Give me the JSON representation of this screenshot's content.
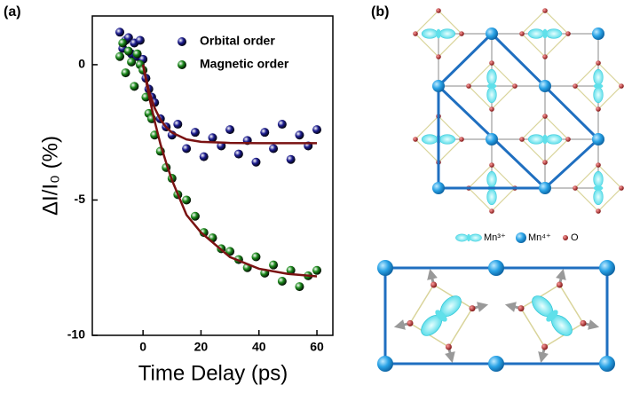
{
  "chart_data": {
    "type": "scatter",
    "panel_label": "(a)",
    "x_label": "Time Delay (ps)",
    "y_label": "ΔI/I₀ (%)",
    "xlim": [
      -17.5,
      65.5
    ],
    "ylim": [
      -10,
      1.8
    ],
    "xticks": [
      0,
      20,
      40,
      60
    ],
    "yticks": [
      0,
      -5,
      -10
    ],
    "legend": "upper right",
    "series": [
      {
        "name": "Orbital order",
        "type": "scatter",
        "color": "#1c1c8f",
        "x": [
          -8,
          -7,
          -6,
          -5,
          -4,
          -3,
          -2,
          -1,
          0,
          1,
          2,
          3,
          4,
          6,
          8,
          10,
          12,
          15,
          18,
          21,
          24,
          27,
          30,
          33,
          36,
          39,
          42,
          45,
          48,
          51,
          54,
          57,
          60
        ],
        "values": [
          1.2,
          0.6,
          0.9,
          1.0,
          0.4,
          0.8,
          0.3,
          0.9,
          0.2,
          -0.5,
          -0.9,
          -1.2,
          -1.4,
          -2.0,
          -2.3,
          -2.6,
          -2.2,
          -3.1,
          -2.5,
          -3.4,
          -2.7,
          -3.0,
          -2.4,
          -3.3,
          -2.8,
          -3.6,
          -2.5,
          -3.1,
          -2.2,
          -3.5,
          -2.6,
          -3.0,
          -2.4
        ]
      },
      {
        "name": "Magnetic order",
        "type": "scatter",
        "color": "#1b8a1b",
        "x": [
          -8,
          -7,
          -6,
          -5,
          -4,
          -3,
          -2,
          -1,
          0,
          1,
          2,
          3,
          4,
          6,
          8,
          10,
          12,
          15,
          18,
          21,
          24,
          27,
          30,
          33,
          36,
          39,
          42,
          45,
          48,
          51,
          54,
          57,
          60
        ],
        "values": [
          0.3,
          0.8,
          -0.3,
          0.5,
          0.1,
          -0.8,
          0.4,
          0.0,
          -0.2,
          -1.2,
          -1.8,
          -2.0,
          -2.6,
          -3.2,
          -3.8,
          -4.2,
          -4.8,
          -5.0,
          -5.6,
          -6.2,
          -6.4,
          -6.8,
          -6.9,
          -7.2,
          -7.5,
          -7.1,
          -7.7,
          -7.4,
          -8.0,
          -7.6,
          -8.2,
          -7.8,
          -7.6
        ]
      },
      {
        "type": "line",
        "color": "#7a1212",
        "x": [
          0,
          2,
          4,
          6,
          8,
          10,
          15,
          20,
          30,
          40,
          50,
          60
        ],
        "values": [
          0,
          -0.96,
          -1.6,
          -2.03,
          -2.31,
          -2.51,
          -2.76,
          -2.85,
          -2.89,
          -2.9,
          -2.9,
          -2.9
        ]
      },
      {
        "type": "line",
        "color": "#7a1212",
        "x": [
          0,
          2,
          4,
          6,
          8,
          10,
          15,
          20,
          30,
          40,
          50,
          60
        ],
        "values": [
          0,
          -1.13,
          -2.08,
          -2.93,
          -3.63,
          -4.27,
          -5.55,
          -6.2,
          -7.11,
          -7.54,
          -7.73,
          -7.82
        ]
      }
    ]
  },
  "diagram": {
    "panel_label": "(b)",
    "legend": [
      "Mn³⁺",
      "Mn⁴⁺",
      "O"
    ]
  }
}
